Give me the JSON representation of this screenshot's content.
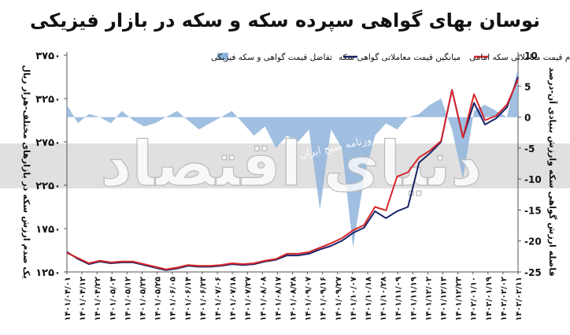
{
  "chart_data": {
    "type": "line",
    "title": "نوسان بهای گواهی سپرده سکه و سکه در بازار فیزیکی",
    "ylabel_left": "یک صدم ارزش سکه در بازارهای مختلف-هزار ریال",
    "ylabel_right": "فاصله ارزش گواهی سکه وارزش بنیادی آن-درصد",
    "y_left_ticks": [
      "۳۷۵۰",
      "۳۲۵۰",
      "۲۷۵۰",
      "۲۲۵۰",
      "۱۷۵۰",
      "۱۲۵۰"
    ],
    "y_left_values": [
      3750,
      3250,
      2750,
      2250,
      1750,
      1250
    ],
    "ylim_left": [
      1250,
      3750
    ],
    "y_right_ticks": [
      "10",
      "5",
      "0",
      "-5",
      "-10",
      "-15",
      "-20",
      "-25"
    ],
    "y_right_values": [
      10,
      5,
      0,
      -5,
      -10,
      -15,
      -20,
      -25
    ],
    "ylim_right": [
      -25,
      10
    ],
    "x_ticks": [
      "۱۴۰۱/۰۴/۰۱",
      "۱۴۰۱/۰۴/۱۲",
      "۱۴۰۱/۰۴/۲۲",
      "۱۴۰۱/۰۵/۰۳",
      "۱۴۰۱/۰۵/۱۲",
      "۱۴۰۱/۰۵/۲۲",
      "۱۴۰۱/۰۵/۲۵",
      "۱۴۰۱/۰۶/۰۵",
      "۱۴۰۱/۰۶/۱۴",
      "۱۴۰۱/۰۶/۲۳",
      "۱۴۰۱/۰۷/۰۶",
      "۱۴۰۱/۰۷/۱۸",
      "۱۴۰۱/۰۷/۲۷",
      "۱۴۰۱/۰۸/۰۸",
      "۱۴۰۱/۰۸/۱۷",
      "۱۴۰۱/۰۸/۲۸",
      "۱۴۰۱/۰۹/۰۷",
      "۱۴۰۱/۰۹/۱۶",
      "۱۴۰۱/۰۹/۲۷",
      "۱۴۰۱/۱۰/۰۷",
      "۱۴۰۱/۱۰/۱۸",
      "۱۴۰۱/۱۰/۲۸",
      "۱۴۰۱/۱۱/۰۹",
      "۱۴۰۱/۱۱/۱۹",
      "۱۴۰۱/۱۲/۰۲",
      "۱۴۰۱/۱۲/۱۳",
      "۱۴۰۱/۱۲/۲۳",
      "۱۴۰۲/۰۱/۱۰",
      "۱۴۰۲/۰۱/۱۹",
      "۱۴۰۲/۰۲/۰۲",
      "۱۴۰۲/۰۲/۱۱"
    ],
    "grid": false,
    "legend_position": "top",
    "legend": [
      {
        "name": "یکصدم قیمت معاملاتی سکه امامی",
        "color": "#d6262b",
        "kind": "line"
      },
      {
        "name": "میانگین قیمت معاملاتی گواهی سکه",
        "color": "#1a2368",
        "kind": "line"
      },
      {
        "name": "تفاضل قیمت گواهی و سکه فیزیکی",
        "color": "#8fb4dc",
        "kind": "area"
      }
    ],
    "series": [
      {
        "name": "یکصدم قیمت معاملاتی سکه امامی",
        "axis": "left",
        "color": "#d6262b",
        "values": [
          1470,
          1410,
          1350,
          1380,
          1360,
          1370,
          1370,
          1340,
          1310,
          1280,
          1300,
          1330,
          1320,
          1320,
          1330,
          1350,
          1340,
          1350,
          1380,
          1400,
          1460,
          1460,
          1480,
          1530,
          1580,
          1640,
          1730,
          1790,
          2000,
          1960,
          2350,
          2400,
          2570,
          2650,
          2760,
          3350,
          2800,
          3300,
          3000,
          3050,
          3180,
          3470
        ]
      },
      {
        "name": "میانگین قیمت معاملاتی گواهی سکه",
        "axis": "left",
        "color": "#1a2368",
        "values": [
          1480,
          1400,
          1340,
          1370,
          1350,
          1360,
          1360,
          1330,
          1300,
          1270,
          1290,
          1320,
          1310,
          1310,
          1320,
          1340,
          1330,
          1340,
          1370,
          1390,
          1440,
          1440,
          1460,
          1510,
          1550,
          1610,
          1700,
          1760,
          1950,
          1870,
          1950,
          2000,
          2510,
          2620,
          2750,
          3350,
          2800,
          3200,
          2950,
          3020,
          3150,
          3500
        ]
      },
      {
        "name": "تفاضل قیمت گواهی و سکه فیزیکی",
        "axis": "right",
        "color": "#8fb4dc",
        "values": [
          2,
          -1,
          0.5,
          0,
          -1,
          1,
          -0.5,
          -1.5,
          -1,
          0,
          1,
          -0.5,
          -2,
          -1,
          0,
          1,
          -1,
          -3,
          -1.5,
          -5,
          -3,
          -4,
          -2,
          -15,
          -2,
          -5,
          -21,
          -10,
          -3,
          -1,
          -2,
          0,
          0.5,
          2,
          3,
          -2,
          -10,
          1,
          2,
          1,
          0,
          8
        ]
      }
    ],
    "watermark_text": "دنیای اقتصاد",
    "watermark_sub": "روزنامه صبح ایران"
  }
}
